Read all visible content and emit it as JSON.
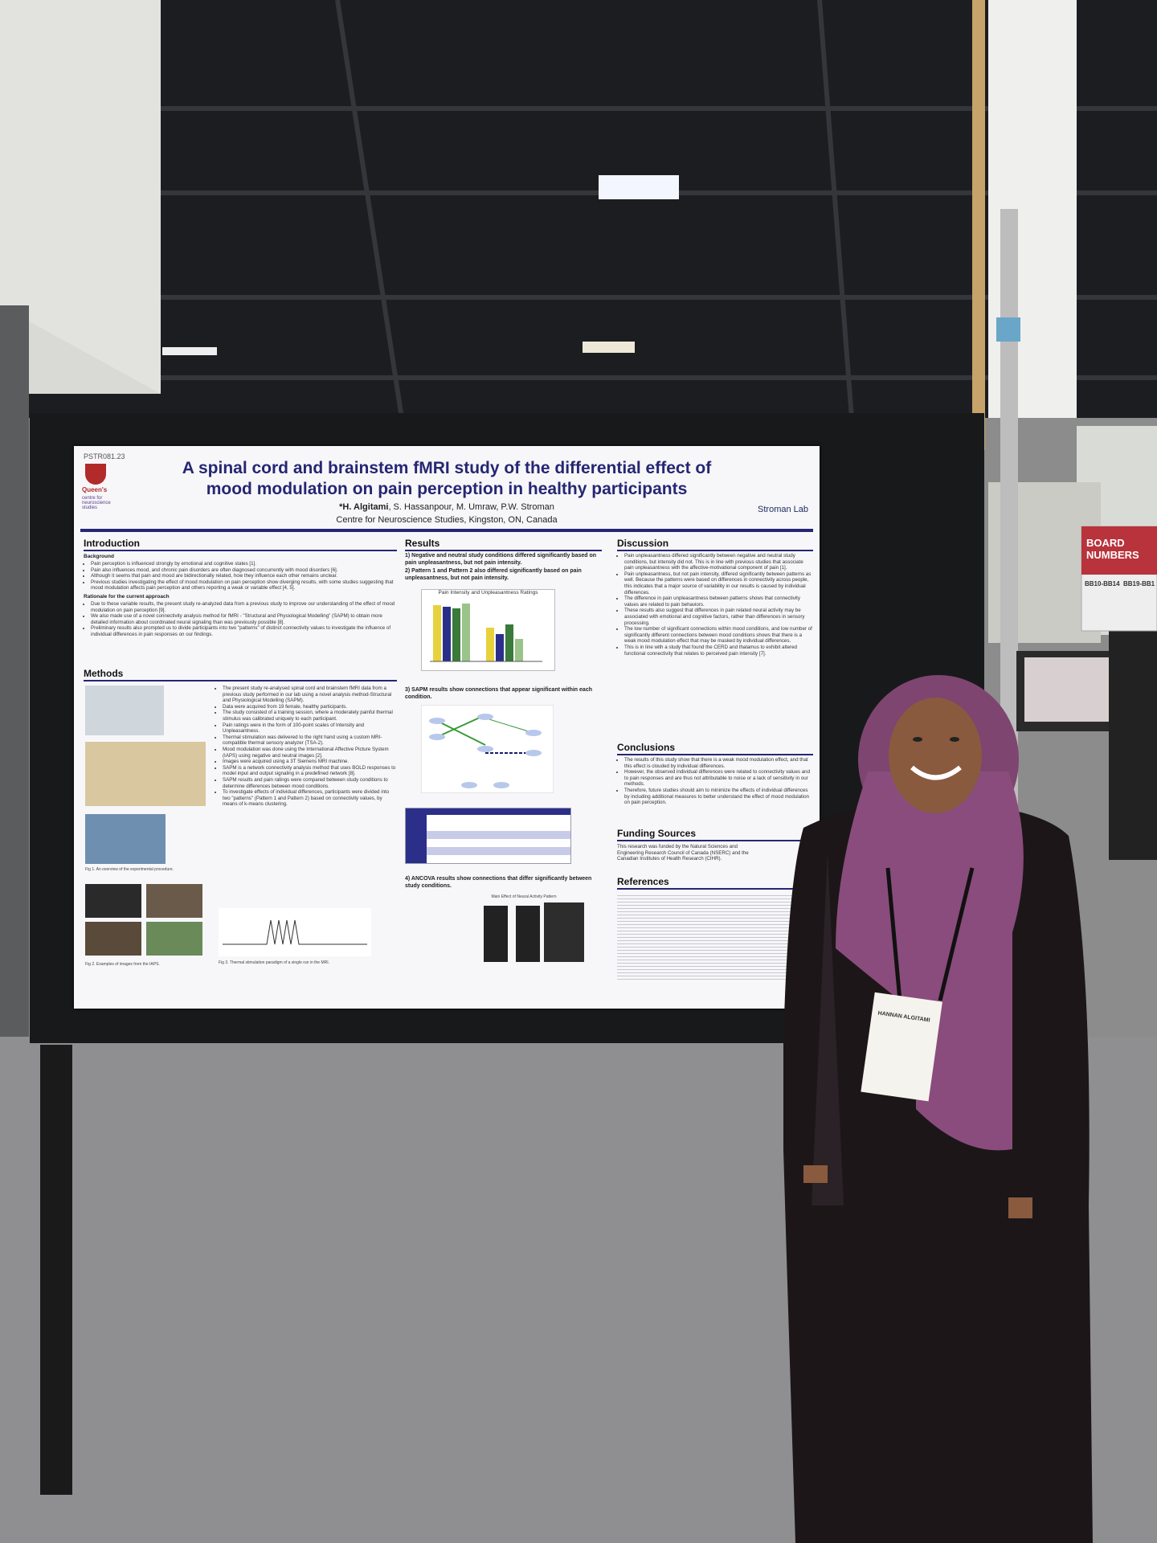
{
  "poster": {
    "id": "PSTR081.23",
    "logo": "Queen's",
    "logo_sub": "centre for neuroscience studies",
    "title_line1": "A spinal cord and brainstem fMRI study of the differential effect of",
    "title_line2": "mood modulation on pain perception in healthy participants",
    "authors_lead": "*H. Algitami",
    "authors_rest": ", S. Hassanpour, M. Umraw, P.W. Stroman",
    "affiliation": "Centre for Neuroscience Studies, Kingston, ON, Canada",
    "lab": "Stroman Lab"
  },
  "introduction": {
    "heading": "Introduction",
    "subheading": "Background",
    "bullets": [
      "Pain perception is influenced strongly by emotional and cognitive states [1].",
      "Pain also influences mood, and chronic pain disorders are often diagnosed concurrently with mood disorders [6].",
      "Although it seems that pain and mood are bidirectionally related, how they influence each other remains unclear.",
      "Previous studies investigating the effect of mood modulation on pain perception show diverging results, with some studies suggesting that mood modulation affects pain perception and others reporting a weak or variable effect [4, 5]."
    ],
    "subheading2": "Rationale for the current approach",
    "bullets2": [
      "Due to these variable results, the present study re-analyzed data from a previous study to improve our understanding of the effect of mood modulation on pain perception [9].",
      "We also made use of a novel connectivity analysis method for fMRI - \"Structural and Physiological Modelling\" (SAPM) to obtain more detailed information about coordinated neural signaling than was previously possible [8].",
      "Preliminary results also prompted us to divide participants into two \"patterns\" of distinct connectivity values to investigate the influence of individual differences in pain responses on our findings."
    ]
  },
  "methods": {
    "heading": "Methods",
    "bullets": [
      "The present study re-analysed spinal cord and brainstem fMRI data from a previous study performed in our lab using a novel analysis method-Structural and Physiological Modelling (SAPM).",
      "Data were acquired from 19 female, healthy participants.",
      "The study consisted of a training session, where a moderately painful thermal stimulus was calibrated uniquely to each participant.",
      "Pain ratings were in the form of 100-point scales of Intensity and Unpleasantness.",
      "Thermal stimulation was delivered to the right hand using a custom MRI-compatible thermal sensory analyzer (TSA-2).",
      "Mood modulation was done using the International Affective Picture System (IAPS) using negative and neutral images [2].",
      "Images were acquired using a 3T Siemens MRI machine.",
      "SAPM is a network connectivity analysis method that uses BOLD responses to model input and output signaling in a predefined network [8].",
      "SAPM results and pain ratings were compared between study conditions to determine differences between mood conditions.",
      "To investigate effects of individual differences, participants were divided into two \"patterns\" (Pattern 1 and Pattern 2) based on connectivity values, by means of k-means clustering."
    ],
    "fig1": "Fig 1. An overview of the experimental procedure.",
    "fig2": "Fig 2. Examples of images from the IAPS.",
    "fig3": "Fig 3. Thermal stimulation paradigm of a single run in the MRI."
  },
  "results": {
    "heading": "Results",
    "items": [
      "1) Negative and neutral study conditions differed significantly based on pain unpleasantness, but not pain intensity.",
      "2) Pattern 1 and Pattern 2 also differed significantly based on pain unpleasantness, but not pain intensity."
    ],
    "chart_title": "Pain Intensity and Unpleasantness Ratings",
    "item3": "3) SAPM results show connections that appear significant within each condition.",
    "item4": "4) ANCOVA results show connections that differ significantly between study conditions.",
    "fig6_title": "Main Effect of Neural Activity Pattern"
  },
  "discussion": {
    "heading": "Discussion",
    "bullets": [
      "Pain unpleasantness differed significantly between negative and neutral study conditions, but intensity did not. This is in line with previous studies that associate pain unpleasantness with the affective-motivational component of pain [1].",
      "Pain unpleasantness, but not pain intensity, differed significantly between patterns as well. Because the patterns were based on differences in connectivity across people, this indicates that a major source of variability in our results is caused by individual differences.",
      "The difference in pain unpleasantness between patterns shows that connectivity values are related to pain behaviors.",
      "These results also suggest that differences in pain related neural activity may be associated with emotional and cognitive factors, rather than differences in sensory processing.",
      "The low number of significant connections within mood conditions, and low number of significantly different connections between mood conditions shows that there is a weak mood modulation effect that may be masked by individual differences.",
      "This is in line with a study that found the CERD and thalamus to exhibit altered functional connectivity that relates to perceived pain intensity [7]."
    ]
  },
  "conclusions": {
    "heading": "Conclusions",
    "bullets": [
      "The results of this study show that there is a weak mood modulation effect, and that this effect is clouded by individual differences.",
      "However, the observed individual differences were related to connectivity values and to pain responses and are thus not attributable to noise or a lack of sensitivity in our methods.",
      "Therefore, future studies should aim to minimize the effects of individual differences by including additional measures to better understand the effect of mood modulation on pain perception."
    ]
  },
  "funding": {
    "heading": "Funding Sources",
    "text": "This research was funded by the Natural Sciences and Engineering Research Council of Canada (NSERC) and the Canadian Institutes of Health Research (CIHR)."
  },
  "references": {
    "heading": "References"
  },
  "sign": {
    "title": "BOARD NUMBERS",
    "range1": "BB10-BB14",
    "range2": "BB19-BB1"
  },
  "badge": {
    "name": "HANNAN ALGITAMI"
  }
}
